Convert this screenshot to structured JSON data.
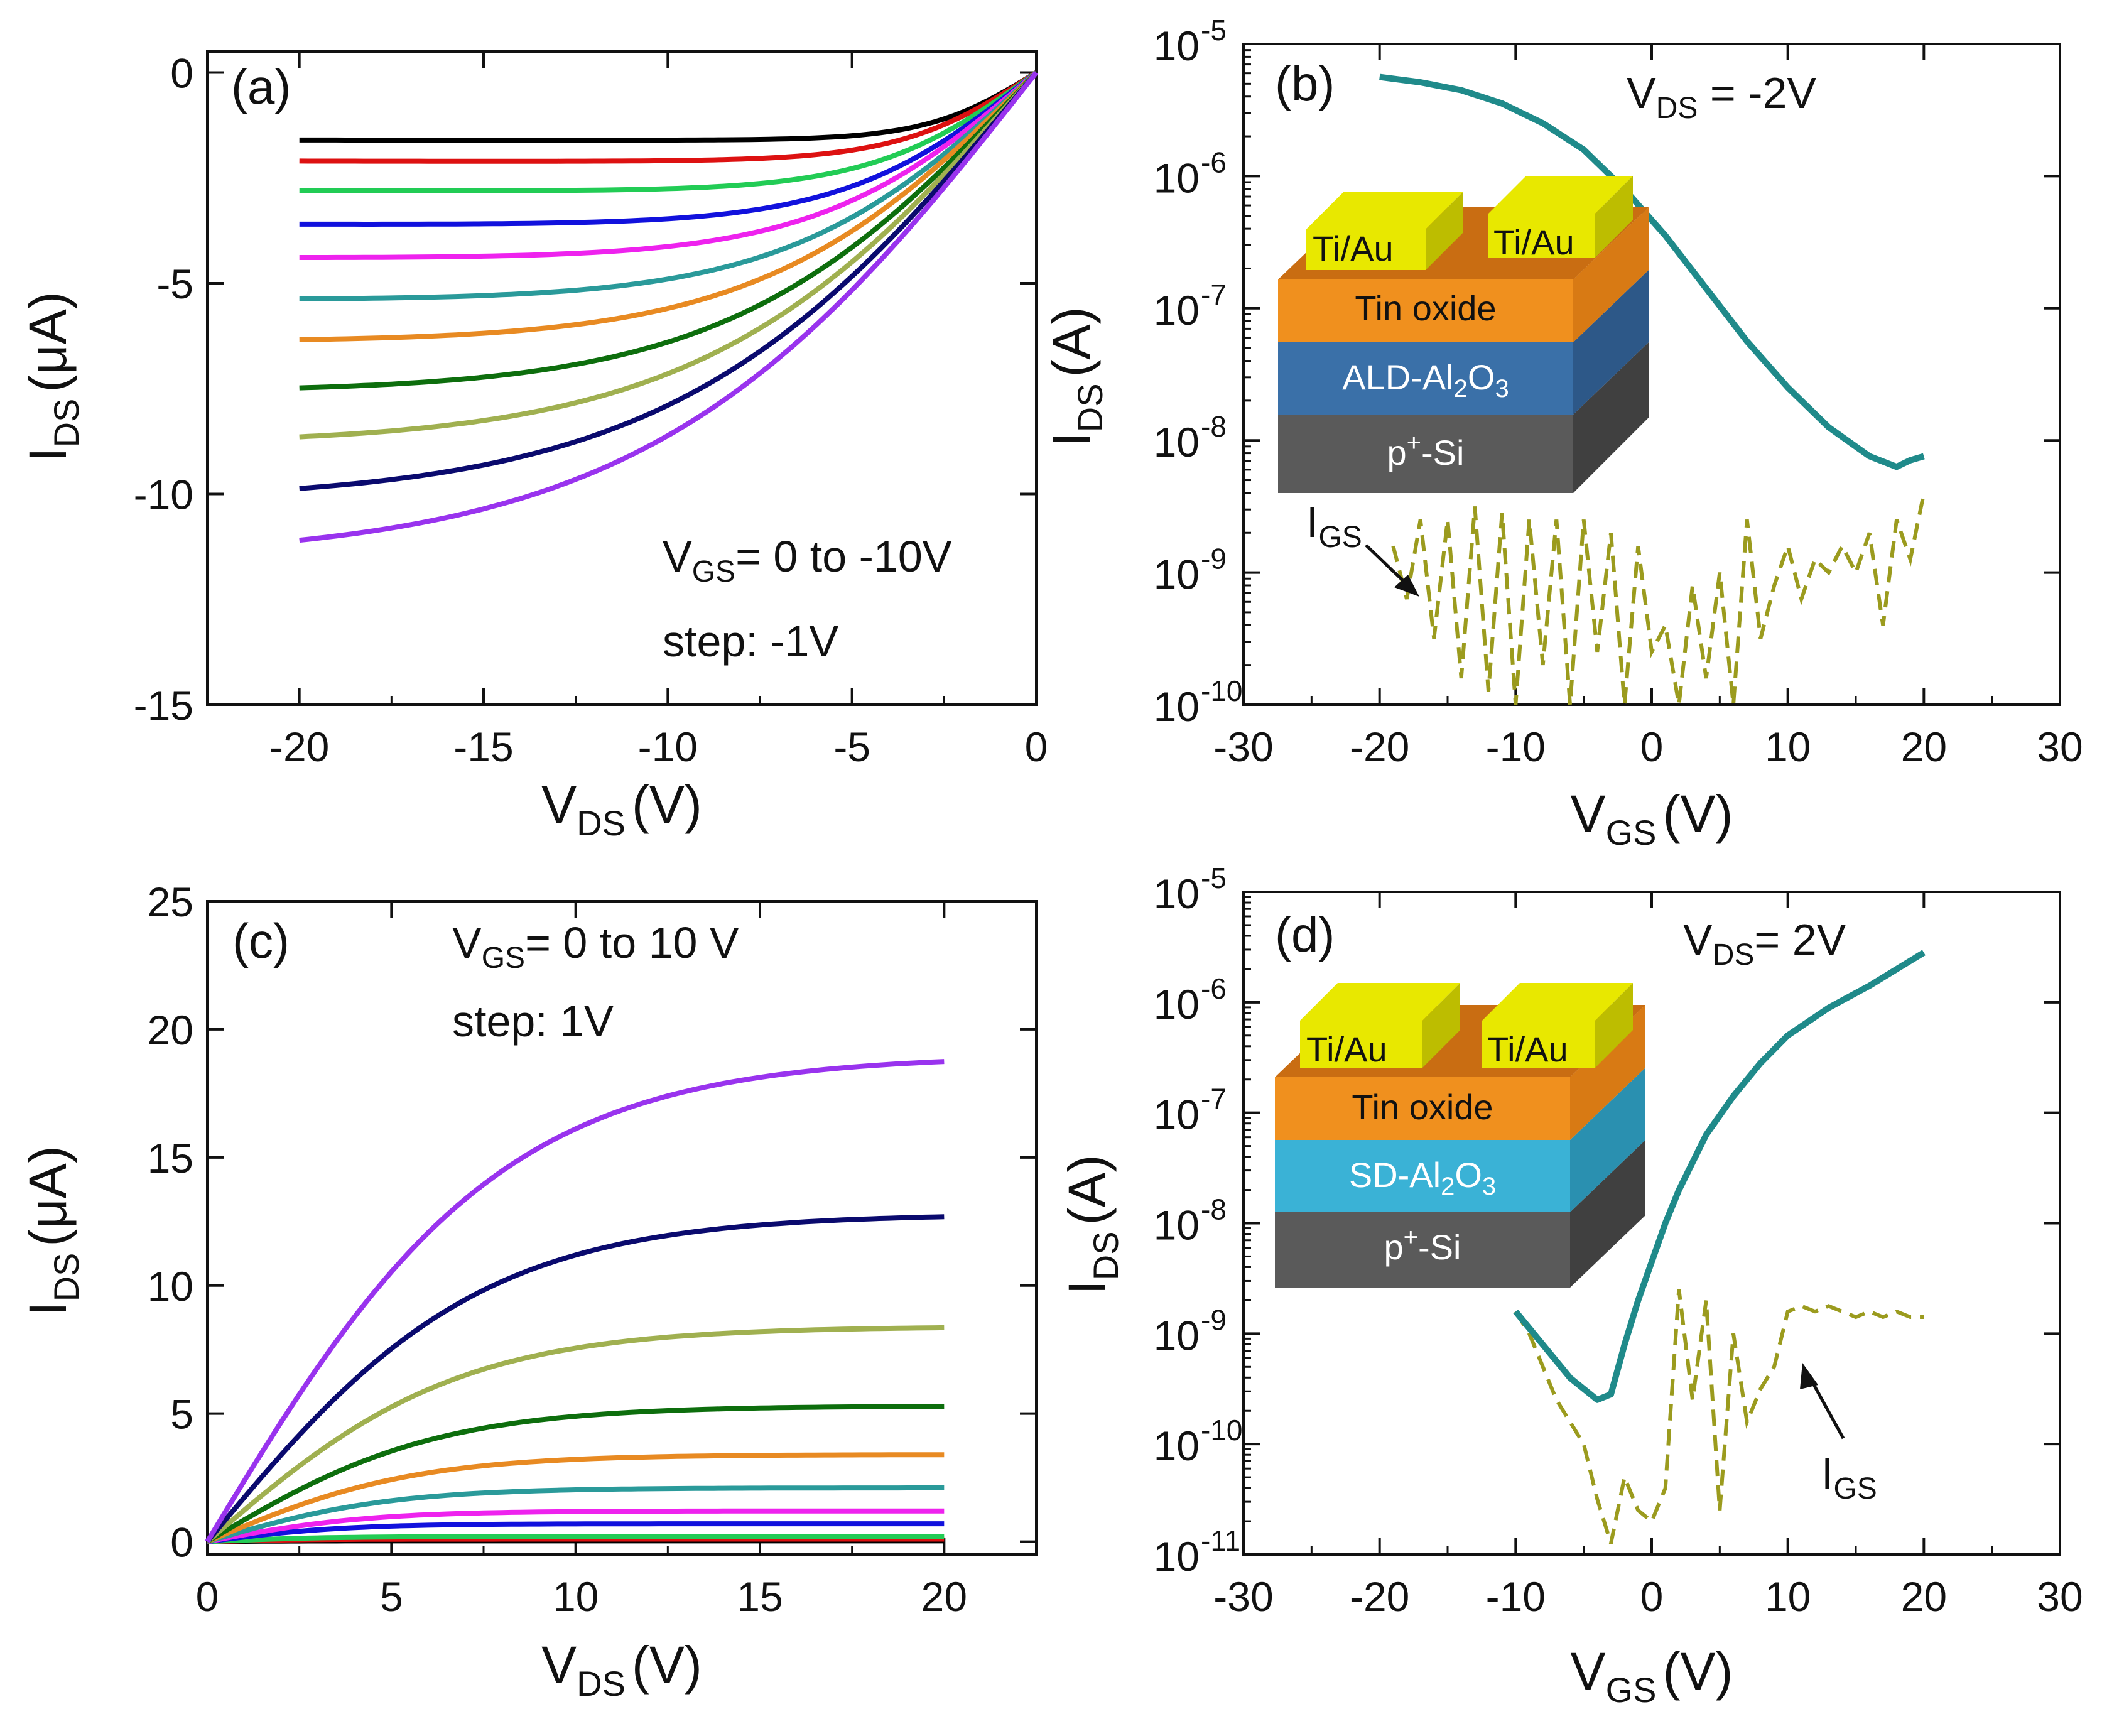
{
  "colors": {
    "ids_line": "#1f8a8a",
    "igs_line": "#9b9b1e",
    "gold_top": "#e8e800",
    "gold_side": "#bdbd00",
    "oxide_top": "#c96d12",
    "oxide_front": "#f0901e",
    "ald_front": "#3a70a8",
    "sd_front": "#3ab2d6",
    "si_front": "#5a5a5a",
    "si_side": "#404040"
  },
  "chart_data": [
    {
      "id": "a",
      "type": "line",
      "panel_label": "(a)",
      "xlabel": "V",
      "xlabel_sub": "DS",
      "xlabel_unit": "(V)",
      "ylabel": "I",
      "ylabel_sub": "DS",
      "ylabel_unit": "(μA)",
      "xlim": [
        -22.5,
        0
      ],
      "ylim": [
        -15,
        0.5
      ],
      "xticks": [
        -20,
        -15,
        -10,
        -5,
        0
      ],
      "yticks": [
        0,
        -5,
        -10,
        -15
      ],
      "xtick_labels": [
        "-20",
        "-15",
        "-10",
        "-5",
        "0"
      ],
      "ytick_labels": [
        "0",
        "-5",
        "-10",
        "-15"
      ],
      "annotation": {
        "pre": "V",
        "sub": "GS",
        "post": "= 0 to -10V"
      },
      "annotation2": "step: -1V",
      "series": [
        {
          "name": "VGS 0V",
          "color": "#000000",
          "isat": -1.6,
          "k": 0.015
        },
        {
          "name": "VGS -1V",
          "color": "#dd1111",
          "isat": -2.1,
          "k": 0.02
        },
        {
          "name": "VGS -2V",
          "color": "#22cc55",
          "isat": -2.8,
          "k": 0.03
        },
        {
          "name": "VGS -3V",
          "color": "#1111dd",
          "isat": -3.6,
          "k": 0.03
        },
        {
          "name": "VGS -4V",
          "color": "#ee22ee",
          "isat": -4.4,
          "k": 0.03
        },
        {
          "name": "VGS -5V",
          "color": "#2a9a9a",
          "isat": -5.4,
          "k": 0.025
        },
        {
          "name": "VGS -6V",
          "color": "#e88a22",
          "isat": -6.4,
          "k": 0.02
        },
        {
          "name": "VGS -7V",
          "color": "#0d6e0d",
          "isat": -7.6,
          "k": 0.02
        },
        {
          "name": "VGS -8V",
          "color": "#a0b050",
          "isat": -8.85,
          "k": 0.015
        },
        {
          "name": "VGS -9V",
          "color": "#0a0a6e",
          "isat": -10.2,
          "k": 0.01
        },
        {
          "name": "VGS -10V",
          "color": "#9933ee",
          "isat": -11.6,
          "k": 0.01
        }
      ]
    },
    {
      "id": "b",
      "type": "line",
      "panel_label": "(b)",
      "xlabel": "V",
      "xlabel_sub": "GS",
      "xlabel_unit": "(V)",
      "ylabel": "I",
      "ylabel_sub": "DS",
      "ylabel_unit": "(A)",
      "yscale": "log",
      "xlim": [
        -30,
        30
      ],
      "ylim_exp": [
        -10,
        -5
      ],
      "xticks": [
        -30,
        -20,
        -10,
        0,
        10,
        20,
        30
      ],
      "xtick_labels": [
        "-30",
        "-20",
        "-10",
        "0",
        "10",
        "20",
        "30"
      ],
      "ytick_labels": [
        {
          "base": "10",
          "exp": "-5"
        },
        {
          "base": "10",
          "exp": "-6"
        },
        {
          "base": "10",
          "exp": "-7"
        },
        {
          "base": "10",
          "exp": "-8"
        },
        {
          "base": "10",
          "exp": "-9"
        },
        {
          "base": "10",
          "exp": "-10"
        }
      ],
      "annotation": {
        "pre": "V",
        "sub": "DS",
        "post": " = -2V"
      },
      "igs_label": {
        "pre": "I",
        "sub": "GS"
      },
      "ids_series": {
        "name": "IDS",
        "x": [
          -20,
          -17,
          -14,
          -11,
          -8,
          -5,
          -2,
          1,
          4,
          7,
          10,
          13,
          16,
          18,
          19,
          20
        ],
        "log10_y": [
          -5.25,
          -5.29,
          -5.35,
          -5.45,
          -5.6,
          -5.8,
          -6.1,
          -6.45,
          -6.85,
          -7.25,
          -7.6,
          -7.9,
          -8.12,
          -8.2,
          -8.15,
          -8.12
        ]
      },
      "igs_series": {
        "name": "IGS",
        "x": [
          -19,
          -18,
          -17,
          -16,
          -15,
          -14,
          -13,
          -12,
          -11,
          -10,
          -9,
          -8,
          -7,
          -6,
          -5,
          -4,
          -3,
          -2,
          -1,
          0,
          1,
          2,
          3,
          4,
          5,
          6,
          7,
          8,
          9,
          10,
          11,
          12,
          13,
          14,
          15,
          16,
          17,
          18,
          19,
          20
        ],
        "log10_y": [
          -8.8,
          -9.2,
          -8.6,
          -9.5,
          -8.6,
          -9.8,
          -8.5,
          -9.9,
          -8.55,
          -10,
          -8.6,
          -9.7,
          -8.6,
          -10,
          -8.6,
          -9.6,
          -8.7,
          -10,
          -8.8,
          -9.6,
          -9.4,
          -10,
          -9.1,
          -9.8,
          -9.0,
          -10,
          -8.6,
          -9.5,
          -9.1,
          -8.8,
          -9.2,
          -8.9,
          -9.0,
          -8.8,
          -9.0,
          -8.7,
          -9.4,
          -8.6,
          -8.9,
          -8.4
        ]
      },
      "inset": {
        "electrode_left": "Ti/Au",
        "electrode_right": "Ti/Au",
        "layer1": "Tin oxide",
        "layer2": {
          "pre": "ALD-Al",
          "sub1": "2",
          "mid": "O",
          "sub2": "3"
        },
        "layer3": {
          "pre": "p",
          "sup": "+",
          "post": "-Si"
        }
      }
    },
    {
      "id": "c",
      "type": "line",
      "panel_label": "(c)",
      "xlabel": "V",
      "xlabel_sub": "DS",
      "xlabel_unit": "(V)",
      "ylabel": "I",
      "ylabel_sub": "DS",
      "ylabel_unit": "(μA)",
      "xlim": [
        0,
        22.5
      ],
      "ylim": [
        -0.5,
        25
      ],
      "xticks": [
        0,
        5,
        10,
        15,
        20
      ],
      "yticks": [
        0,
        5,
        10,
        15,
        20,
        25
      ],
      "xtick_labels": [
        "0",
        "5",
        "10",
        "15",
        "20"
      ],
      "ytick_labels": [
        "0",
        "5",
        "10",
        "15",
        "20",
        "25"
      ],
      "annotation": {
        "pre": "V",
        "sub": "GS",
        "post": "= 0 to 10 V"
      },
      "annotation2": "step: 1V",
      "series": [
        {
          "name": "VGS 0V",
          "color": "#000000",
          "isat": 0.03
        },
        {
          "name": "VGS 1V",
          "color": "#dd1111",
          "isat": 0.1
        },
        {
          "name": "VGS 2V",
          "color": "#22cc55",
          "isat": 0.2
        },
        {
          "name": "VGS 3V",
          "color": "#1111dd",
          "isat": 0.7
        },
        {
          "name": "VGS 4V",
          "color": "#ee22ee",
          "isat": 1.2
        },
        {
          "name": "VGS 5V",
          "color": "#2a9a9a",
          "isat": 2.1
        },
        {
          "name": "VGS 6V",
          "color": "#e88a22",
          "isat": 3.4
        },
        {
          "name": "VGS 7V",
          "color": "#0d6e0d",
          "isat": 5.3
        },
        {
          "name": "VGS 8V",
          "color": "#a0b050",
          "isat": 8.4
        },
        {
          "name": "VGS 9V",
          "color": "#0a0a6e",
          "isat": 12.8
        },
        {
          "name": "VGS 10V",
          "color": "#9933ee",
          "isat": 19.0
        }
      ]
    },
    {
      "id": "d",
      "type": "line",
      "panel_label": "(d)",
      "xlabel": "V",
      "xlabel_sub": "GS",
      "xlabel_unit": "(V)",
      "ylabel": "I",
      "ylabel_sub": "DS",
      "ylabel_unit": "(A)",
      "yscale": "log",
      "xlim": [
        -30,
        30
      ],
      "ylim_exp": [
        -11,
        -5
      ],
      "xticks": [
        -30,
        -20,
        -10,
        0,
        10,
        20,
        30
      ],
      "xtick_labels": [
        "-30",
        "-20",
        "-10",
        "0",
        "10",
        "20",
        "30"
      ],
      "ytick_labels": [
        {
          "base": "10",
          "exp": "-5"
        },
        {
          "base": "10",
          "exp": "-6"
        },
        {
          "base": "10",
          "exp": "-7"
        },
        {
          "base": "10",
          "exp": "-8"
        },
        {
          "base": "10",
          "exp": "-9"
        },
        {
          "base": "10",
          "exp": "-10"
        },
        {
          "base": "10",
          "exp": "-11"
        }
      ],
      "annotation": {
        "pre": "V",
        "sub": "DS",
        "post": "= 2V"
      },
      "igs_label": {
        "pre": "I",
        "sub": "GS"
      },
      "ids_series": {
        "name": "IDS",
        "x": [
          -10,
          -8,
          -6,
          -4,
          -3,
          -2,
          -1,
          0,
          1,
          2,
          4,
          6,
          8,
          10,
          13,
          16,
          20
        ],
        "log10_y": [
          -8.8,
          -9.1,
          -9.4,
          -9.6,
          -9.55,
          -9.1,
          -8.7,
          -8.35,
          -8.0,
          -7.7,
          -7.2,
          -6.85,
          -6.55,
          -6.3,
          -6.05,
          -5.85,
          -5.55
        ]
      },
      "igs_series": {
        "name": "IGS",
        "x": [
          -10,
          -9,
          -8,
          -7,
          -6,
          -5,
          -4,
          -3,
          -2,
          -1,
          0,
          1,
          2,
          3,
          4,
          5,
          6,
          7,
          8,
          9,
          10,
          11,
          12,
          13,
          14,
          15,
          16,
          17,
          18,
          19,
          20
        ],
        "log10_y": [
          -8.8,
          -9.0,
          -9.3,
          -9.6,
          -9.8,
          -10.0,
          -10.5,
          -10.9,
          -10.3,
          -10.6,
          -10.7,
          -10.4,
          -8.6,
          -9.6,
          -8.7,
          -10.6,
          -9.0,
          -9.8,
          -9.5,
          -9.3,
          -8.8,
          -8.75,
          -8.8,
          -8.75,
          -8.8,
          -8.85,
          -8.8,
          -8.85,
          -8.8,
          -8.85,
          -8.85
        ]
      },
      "inset": {
        "electrode_left": "Ti/Au",
        "electrode_right": "Ti/Au",
        "layer1": "Tin oxide",
        "layer2": {
          "pre": "SD-Al",
          "sub1": "2",
          "mid": "O",
          "sub2": "3"
        },
        "layer3": {
          "pre": "p",
          "sup": "+",
          "post": "-Si"
        }
      }
    }
  ]
}
